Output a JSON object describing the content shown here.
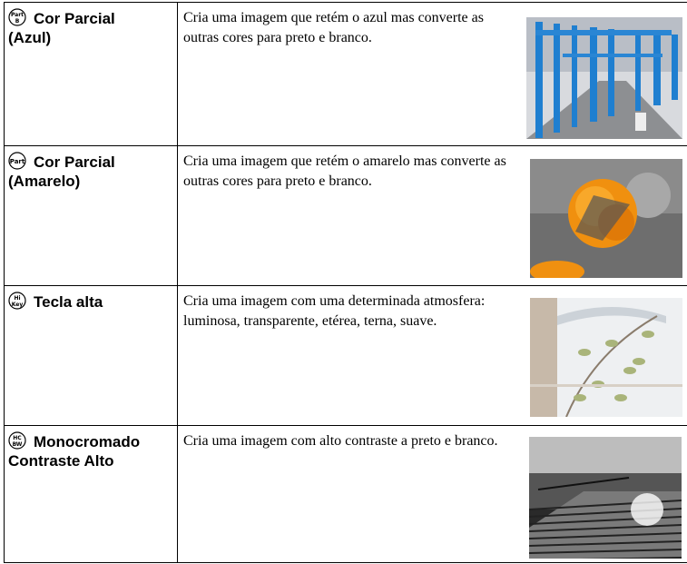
{
  "table": {
    "rows": [
      {
        "icon": [
          "Part",
          "B"
        ],
        "name": [
          "Cor Parcial",
          "(Azul)"
        ],
        "description": "Cria uma imagem que retém o azul mas converte as outras cores para preto e branco."
      },
      {
        "icon": [
          "Part"
        ],
        "name": [
          "Cor Parcial",
          "(Amarelo)"
        ],
        "description": "Cria uma imagem que retém o amarelo mas converte as outras cores para preto e branco."
      },
      {
        "icon": [
          "Hi",
          "Key"
        ],
        "name": [
          "Tecla alta"
        ],
        "description": "Cria uma imagem com uma determinada atmosfera: luminosa, transparente, etérea, terna, suave."
      },
      {
        "icon": [
          "HC",
          "BW"
        ],
        "name": [
          "Monocromado",
          "Contraste Alto"
        ],
        "description": "Cria uma imagem com alto contraste a preto e branco."
      }
    ]
  }
}
